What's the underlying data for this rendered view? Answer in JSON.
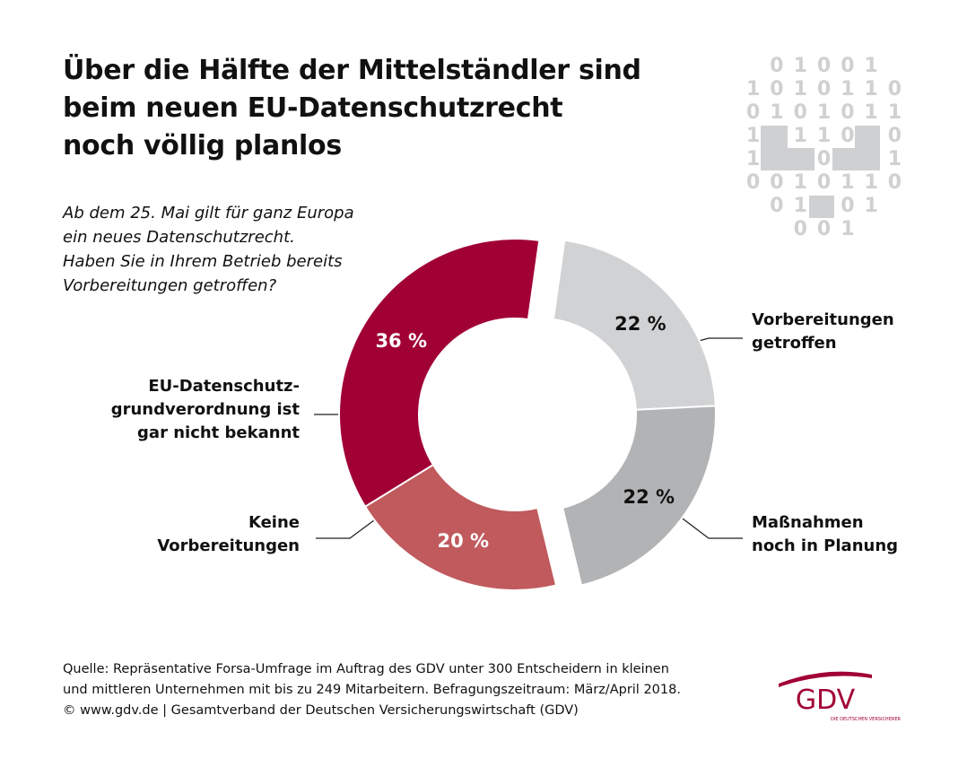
{
  "chart_data": {
    "type": "donut",
    "title": "Über die Hälfte der Mittelständler sind\nbeim neuen EU-Datenschutzrecht\nnoch völlig planlos",
    "subtitle": "Ab dem 25. Mai gilt für ganz Europa\nein neues Datenschutzrecht.\nHaben Sie in Ihrem Betrieb bereits\nVorbereitungen getroffen?",
    "categories": [
      "Vorbereitungen\ngetroffen",
      "Maßnahmen\nnoch in Planung",
      "Keine\nVorbereitungen",
      "EU-Datenschutz-\ngrundverordnung ist\ngar nicht bekannt"
    ],
    "values": [
      22,
      22,
      20,
      36
    ],
    "value_labels": [
      "22 %",
      "22 %",
      "20 %",
      "36 %"
    ],
    "colors": [
      "#d1d2d4",
      "#b2b3b5",
      "#c05a5d",
      "#a10034"
    ],
    "source": "Quelle: Repräsentative Forsa-Umfrage im Auftrag des GDV unter 300 Entscheidern in kleinen\nund mittleren Unternehmen mit bis zu 249 Mitarbeitern. Befragungszeitraum: März/April 2018.\n© www.gdv.de | Gesamtverband der Deutschen Versicherungswirtschaft (GDV)",
    "decoration_rows": [
      " 01001 ",
      "1010110",
      "0101011",
      "1 110 0",
      "1  0  1",
      "0010110",
      " 01 01 ",
      "  001  "
    ],
    "logo": "GDV",
    "logo_tagline": "DIE DEUTSCHEN VERSICHERER"
  }
}
